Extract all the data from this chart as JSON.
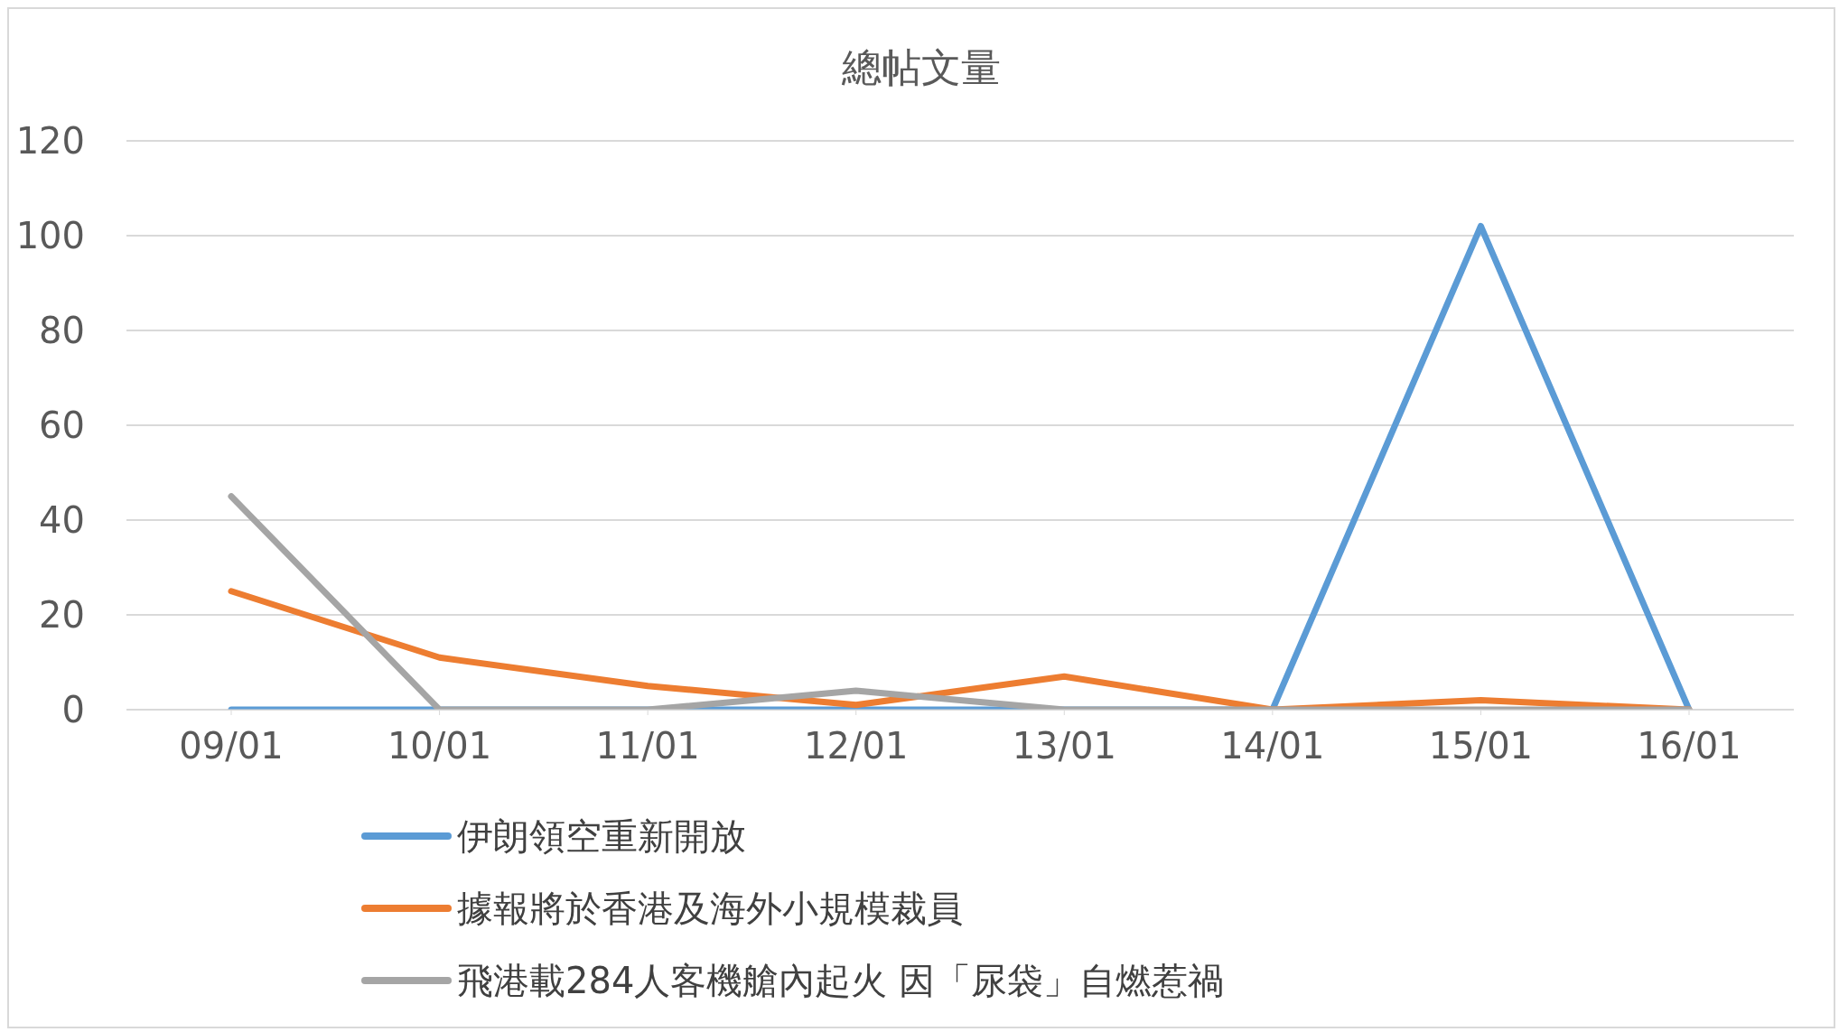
{
  "chart_data": {
    "type": "line",
    "title": "總帖文量",
    "categories": [
      "09/01",
      "10/01",
      "11/01",
      "12/01",
      "13/01",
      "14/01",
      "15/01",
      "16/01"
    ],
    "series": [
      {
        "name": "伊朗領空重新開放",
        "color": "#5b9bd5",
        "values": [
          0,
          0,
          0,
          0,
          0,
          0,
          102,
          0
        ]
      },
      {
        "name": "據報將於香港及海外小規模裁員",
        "color": "#ed7d31",
        "values": [
          25,
          11,
          5,
          1,
          7,
          0,
          2,
          0
        ]
      },
      {
        "name": "飛港載284人客機艙內起火 因「尿袋」自燃惹禍",
        "color": "#a5a5a5",
        "values": [
          45,
          0,
          0,
          4,
          0,
          0,
          0,
          0
        ]
      }
    ],
    "ylim": [
      0,
      120
    ],
    "yticks": [
      0,
      20,
      40,
      60,
      80,
      100,
      120
    ],
    "grid": "y",
    "legend": "bottom",
    "marker": "none",
    "line_style": "solid"
  }
}
